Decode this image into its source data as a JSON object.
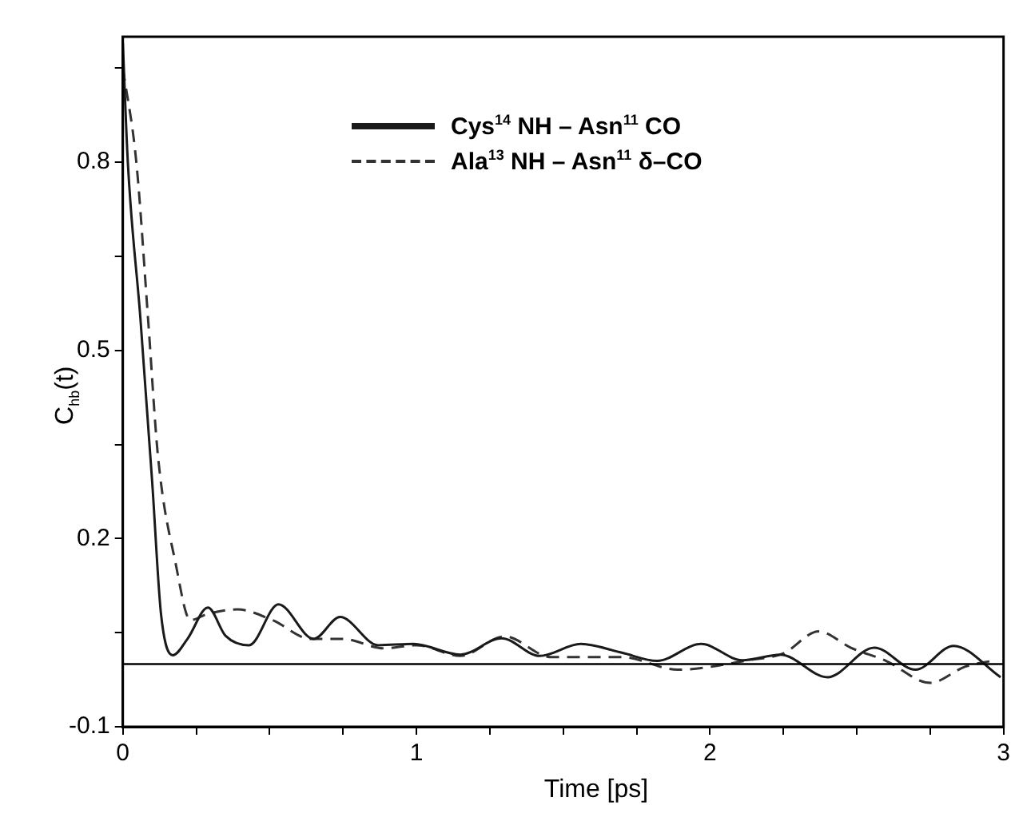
{
  "chart_data": {
    "type": "line",
    "xlabel": "Time [ps]",
    "ylabel": "C$_{hb}$(t)",
    "xlim": [
      0,
      3
    ],
    "ylim": [
      -0.1,
      1.0
    ],
    "xticks": [
      0,
      {
        "value": 0.25,
        "label": null
      },
      {
        "value": 0.5,
        "label": null
      },
      {
        "value": 0.75,
        "label": null
      },
      1,
      {
        "value": 1.25,
        "label": null
      },
      {
        "value": 1.5,
        "label": null
      },
      {
        "value": 1.75,
        "label": null
      },
      2,
      {
        "value": 2.25,
        "label": null
      },
      {
        "value": 2.5,
        "label": null
      },
      {
        "value": 2.75,
        "label": null
      },
      3
    ],
    "yticks": [
      {
        "value": -0.1,
        "label": "-0.1"
      },
      {
        "value": 0.05,
        "label": null
      },
      0.2,
      {
        "value": 0.35,
        "label": null
      },
      0.5,
      {
        "value": 0.65,
        "label": null
      },
      0.8,
      {
        "value": 0.95,
        "label": null
      }
    ],
    "grid": false,
    "legend": "top right",
    "marker": "none",
    "ref_lines": [
      {
        "axis": "y",
        "value": 0,
        "color": "#000000"
      }
    ],
    "series": [
      {
        "name": "Cys$^{14}$ NH – Asn$^{11}$ CO",
        "color": "#1a1a1a",
        "line_style": "solid",
        "x": [
          0,
          0.017,
          0.06,
          0.1,
          0.13,
          0.17,
          0.22,
          0.29,
          0.35,
          0.43,
          0.53,
          0.65,
          0.74,
          0.87,
          0.99,
          1.15,
          1.29,
          1.42,
          1.56,
          1.7,
          1.82,
          1.97,
          2.11,
          2.24,
          2.4,
          2.56,
          2.7,
          2.83,
          2.99
        ],
        "values": [
          0.99,
          0.8,
          0.55,
          0.29,
          0.08,
          0.014,
          0.04,
          0.09,
          0.045,
          0.03,
          0.095,
          0.04,
          0.075,
          0.03,
          0.032,
          0.015,
          0.041,
          0.013,
          0.032,
          0.018,
          0.005,
          0.032,
          0.006,
          0.015,
          -0.021,
          0.026,
          -0.009,
          0.029,
          -0.021
        ]
      },
      {
        "name": "Ala$^{13}$ NH – Asn$^{11}$ δ–CO",
        "color": "#333333",
        "line_style": "dashed",
        "x": [
          0,
          0.046,
          0.086,
          0.12,
          0.18,
          0.23,
          0.29,
          0.39,
          0.51,
          0.64,
          0.75,
          0.89,
          1.0,
          1.15,
          1.3,
          1.46,
          1.7,
          1.89,
          2.13,
          2.25,
          2.37,
          2.48,
          2.6,
          2.75,
          2.87,
          2.96
        ],
        "values": [
          0.95,
          0.8,
          0.55,
          0.33,
          0.16,
          0.07,
          0.08,
          0.087,
          0.07,
          0.04,
          0.04,
          0.025,
          0.03,
          0.013,
          0.044,
          0.011,
          0.011,
          -0.009,
          0.006,
          0.017,
          0.052,
          0.026,
          0.005,
          -0.03,
          -0.004,
          0.005
        ]
      }
    ]
  }
}
